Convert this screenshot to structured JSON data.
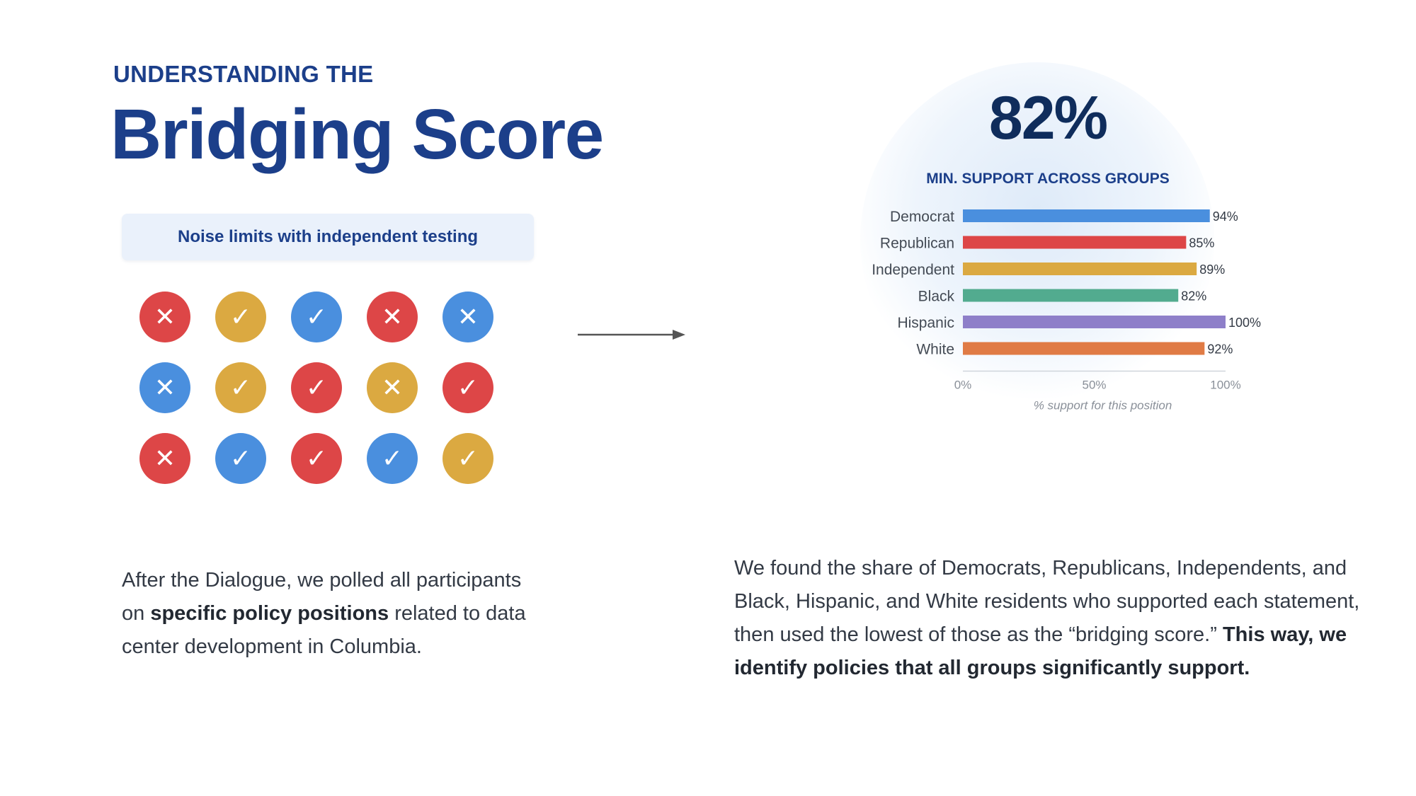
{
  "header": {
    "kicker": "UNDERSTANDING THE",
    "title": "Bridging Score"
  },
  "policy": {
    "label": "Noise limits with independent testing"
  },
  "responses": [
    {
      "mark": "✕",
      "color": "#dd4647",
      "icon": "x-icon"
    },
    {
      "mark": "✓",
      "color": "#dba941",
      "icon": "check-icon"
    },
    {
      "mark": "✓",
      "color": "#4a8fde",
      "icon": "check-icon"
    },
    {
      "mark": "✕",
      "color": "#dd4647",
      "icon": "x-icon"
    },
    {
      "mark": "✕",
      "color": "#4a8fde",
      "icon": "x-icon"
    },
    {
      "mark": "✕",
      "color": "#4a8fde",
      "icon": "x-icon"
    },
    {
      "mark": "✓",
      "color": "#dba941",
      "icon": "check-icon"
    },
    {
      "mark": "✓",
      "color": "#dd4647",
      "icon": "check-icon"
    },
    {
      "mark": "✕",
      "color": "#dba941",
      "icon": "x-icon"
    },
    {
      "mark": "✓",
      "color": "#dd4647",
      "icon": "check-icon"
    },
    {
      "mark": "✕",
      "color": "#dd4647",
      "icon": "x-icon"
    },
    {
      "mark": "✓",
      "color": "#4a8fde",
      "icon": "check-icon"
    },
    {
      "mark": "✓",
      "color": "#dd4647",
      "icon": "check-icon"
    },
    {
      "mark": "✓",
      "color": "#4a8fde",
      "icon": "check-icon"
    },
    {
      "mark": "✓",
      "color": "#dba941",
      "icon": "check-icon"
    }
  ],
  "score": {
    "value": "82%",
    "label": "MIN. SUPPORT ACROSS GROUPS"
  },
  "chart_data": {
    "type": "bar",
    "orientation": "horizontal",
    "categories": [
      "Democrat",
      "Republican",
      "Independent",
      "Black",
      "Hispanic",
      "White"
    ],
    "values": [
      94,
      85,
      89,
      82,
      100,
      92
    ],
    "value_labels": [
      "94%",
      "85%",
      "89%",
      "82%",
      "100%",
      "92%"
    ],
    "colors": [
      "#4a8fde",
      "#dd4647",
      "#dba941",
      "#52ab8f",
      "#8e7fc9",
      "#e07b45"
    ],
    "xlabel": "% support for this position",
    "xlim": [
      0,
      100
    ],
    "ticks": [
      0,
      50,
      100
    ],
    "tick_labels": [
      "0%",
      "50%",
      "100%"
    ],
    "grid": false
  },
  "text": {
    "left_a": "After the Dialogue, we polled all participants on ",
    "left_b": "specific policy positions",
    "left_c": " related to data center development in Columbia.",
    "right_a": "We found the share of Democrats, Republicans, Independents, and Black, Hispanic, and White residents who supported each statement, then used the lowest of those as the “bridging score.” ",
    "right_b": "This way, we identify policies that all groups significantly support."
  }
}
